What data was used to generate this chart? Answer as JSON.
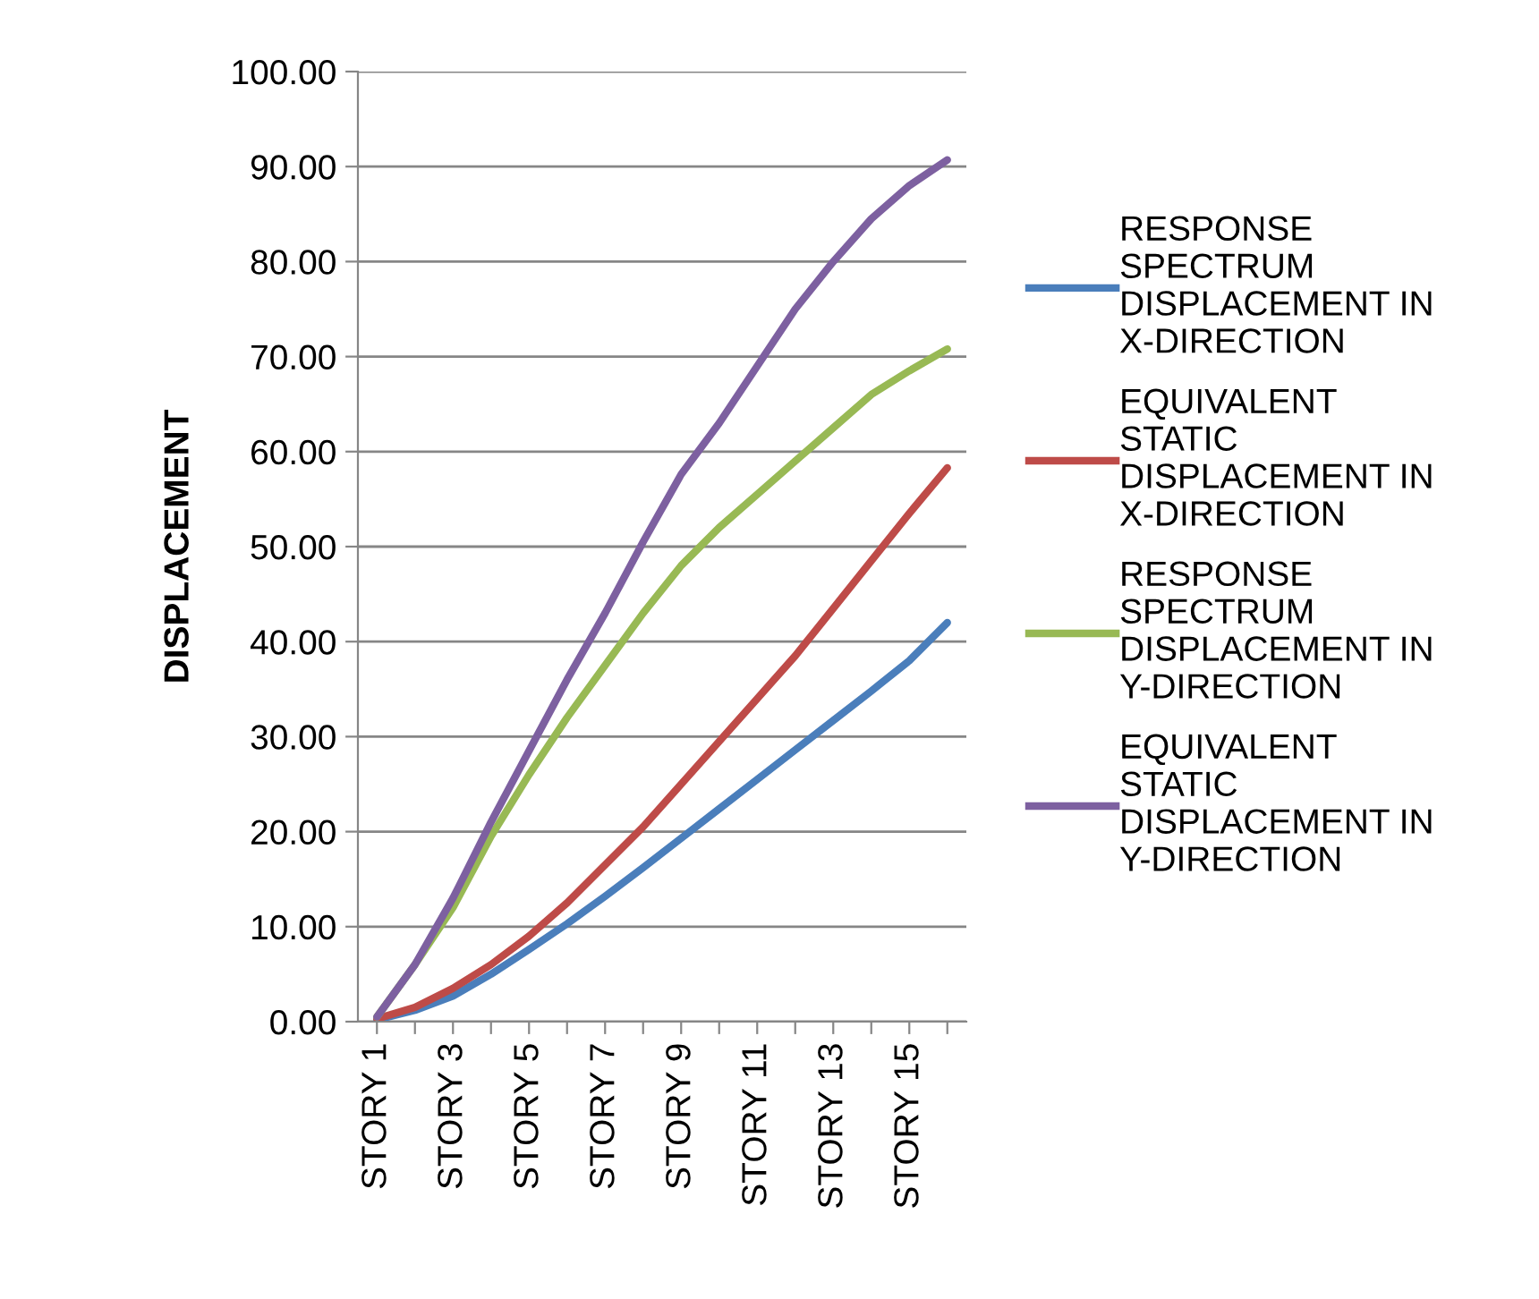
{
  "chart_data": {
    "type": "line",
    "ylabel": "DISPLACEMENT",
    "categories": [
      "STORY 1",
      null,
      "STORY 3",
      null,
      "STORY 5",
      null,
      "STORY 7",
      null,
      "STORY 9",
      null,
      "STORY 11",
      null,
      "STORY 13",
      null,
      "STORY 15",
      null
    ],
    "series": [
      {
        "name": "RESPONSE SPECTRUM DISPLACEMENT IN X-DIRECTION",
        "color": "#4a7ebb",
        "values": [
          0.2,
          1.2,
          2.7,
          5,
          7.6,
          10.3,
          13.2,
          16.2,
          19.3,
          22.4,
          25.5,
          28.6,
          31.7,
          34.8,
          38,
          42
        ]
      },
      {
        "name": "EQUIVALENT STATIC DISPLACEMENT IN X-DIRECTION",
        "color": "#be4b48",
        "values": [
          0.3,
          1.5,
          3.5,
          6,
          9,
          12.5,
          16.5,
          20.5,
          25,
          29.5,
          34,
          38.5,
          43.5,
          48.5,
          53.5,
          58.3
        ]
      },
      {
        "name": "RESPONSE SPECTRUM DISPLACEMENT IN Y-DIRECTION",
        "color": "#98b954",
        "values": [
          0.5,
          6,
          12,
          19.5,
          26,
          32,
          37.5,
          43,
          48,
          52,
          55.5,
          59,
          62.5,
          66,
          68.5,
          70.8
        ]
      },
      {
        "name": "EQUIVALENT STATIC DISPLACEMENT IN Y-DIRECTION",
        "color": "#7d60a0",
        "values": [
          0.5,
          6,
          13,
          21,
          28.5,
          36,
          43,
          50.5,
          57.6,
          63,
          69,
          75,
          80,
          84.5,
          88,
          90.7
        ]
      }
    ],
    "ylim": [
      0,
      100
    ],
    "yticks": [
      {
        "value": 0,
        "label": "0.00"
      },
      {
        "value": 10,
        "label": "10.00"
      },
      {
        "value": 20,
        "label": "20.00"
      },
      {
        "value": 30,
        "label": "30.00"
      },
      {
        "value": 40,
        "label": "40.00"
      },
      {
        "value": 50,
        "label": "50.00"
      },
      {
        "value": 60,
        "label": "60.00"
      },
      {
        "value": 70,
        "label": "70.00"
      },
      {
        "value": 80,
        "label": "80.00"
      },
      {
        "value": 90,
        "label": "90.00"
      },
      {
        "value": 100,
        "label": "100.00"
      }
    ],
    "grid": "y",
    "legend": "right",
    "marker": "none",
    "line_style": "solid"
  }
}
